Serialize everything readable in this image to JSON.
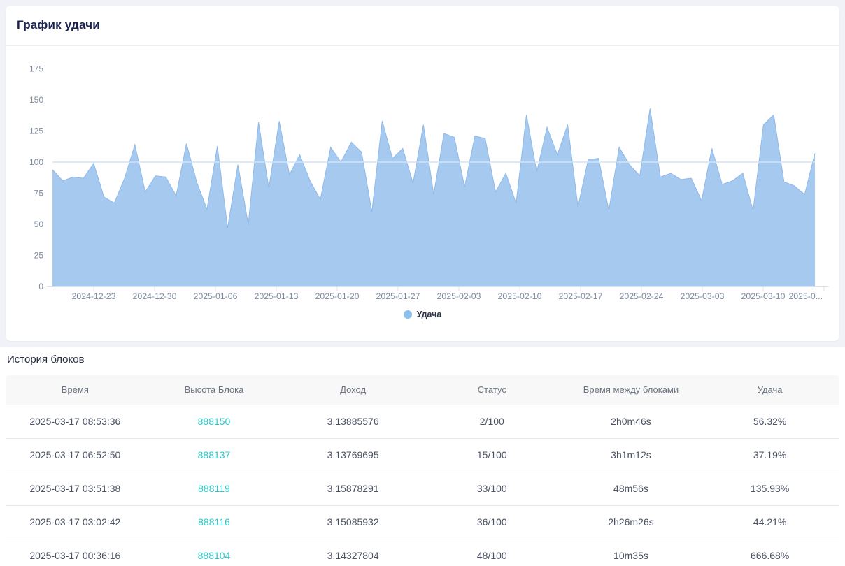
{
  "chart_card": {
    "title": "График удачи"
  },
  "chart_data": {
    "type": "area",
    "title": "График удачи",
    "series_name": "Удача",
    "xlabel": "",
    "ylabel": "",
    "ylim": [
      0,
      185
    ],
    "y_ticks": [
      0,
      25,
      50,
      75,
      100,
      125,
      150,
      175
    ],
    "reference_line": 100,
    "grid": false,
    "legend_position": "bottom",
    "x_labels": [
      "2024-12-23",
      "2024-12-30",
      "2025-01-06",
      "2025-01-13",
      "2025-01-20",
      "2025-01-27",
      "2025-02-03",
      "2025-02-10",
      "2025-02-17",
      "2025-02-24",
      "2025-03-03",
      "2025-03-10",
      "2025-0..."
    ],
    "values": [
      94,
      85,
      88,
      87,
      99,
      72,
      67,
      87,
      114,
      76,
      89,
      88,
      73,
      115,
      84,
      62,
      113,
      47,
      98,
      50,
      132,
      79,
      133,
      90,
      106,
      85,
      70,
      112,
      100,
      116,
      108,
      60,
      133,
      103,
      111,
      83,
      130,
      74,
      123,
      120,
      80,
      121,
      119,
      76,
      91,
      67,
      138,
      92,
      128,
      106,
      130,
      64,
      102,
      103,
      61,
      112,
      98,
      89,
      143,
      88,
      91,
      86,
      87,
      69,
      111,
      82,
      85,
      91,
      61,
      130,
      138,
      84,
      81,
      74,
      107
    ],
    "colors": {
      "area_fill": "#a6c9ef",
      "line": "#8fb9e9",
      "reference_line": "#d3e3f6",
      "axis_line": "#dde1e8",
      "tick_label": "#7e8aa0",
      "legend_marker": "#8cc0ec"
    }
  },
  "history": {
    "title": "История блоков",
    "columns": [
      "Время",
      "Высота Блока",
      "Доход",
      "Статус",
      "Время между блоками",
      "Удача"
    ],
    "link_color": "#2dc7c9",
    "rows": [
      {
        "time": "2025-03-17 08:53:36",
        "height": "888150",
        "reward": "3.13885576",
        "status": "2/100",
        "interval": "2h0m46s",
        "luck": "56.32%"
      },
      {
        "time": "2025-03-17 06:52:50",
        "height": "888137",
        "reward": "3.13769695",
        "status": "15/100",
        "interval": "3h1m12s",
        "luck": "37.19%"
      },
      {
        "time": "2025-03-17 03:51:38",
        "height": "888119",
        "reward": "3.15878291",
        "status": "33/100",
        "interval": "48m56s",
        "luck": "135.93%"
      },
      {
        "time": "2025-03-17 03:02:42",
        "height": "888116",
        "reward": "3.15085932",
        "status": "36/100",
        "interval": "2h26m26s",
        "luck": "44.21%"
      },
      {
        "time": "2025-03-17 00:36:16",
        "height": "888104",
        "reward": "3.14327804",
        "status": "48/100",
        "interval": "10m35s",
        "luck": "666.68%"
      }
    ]
  }
}
